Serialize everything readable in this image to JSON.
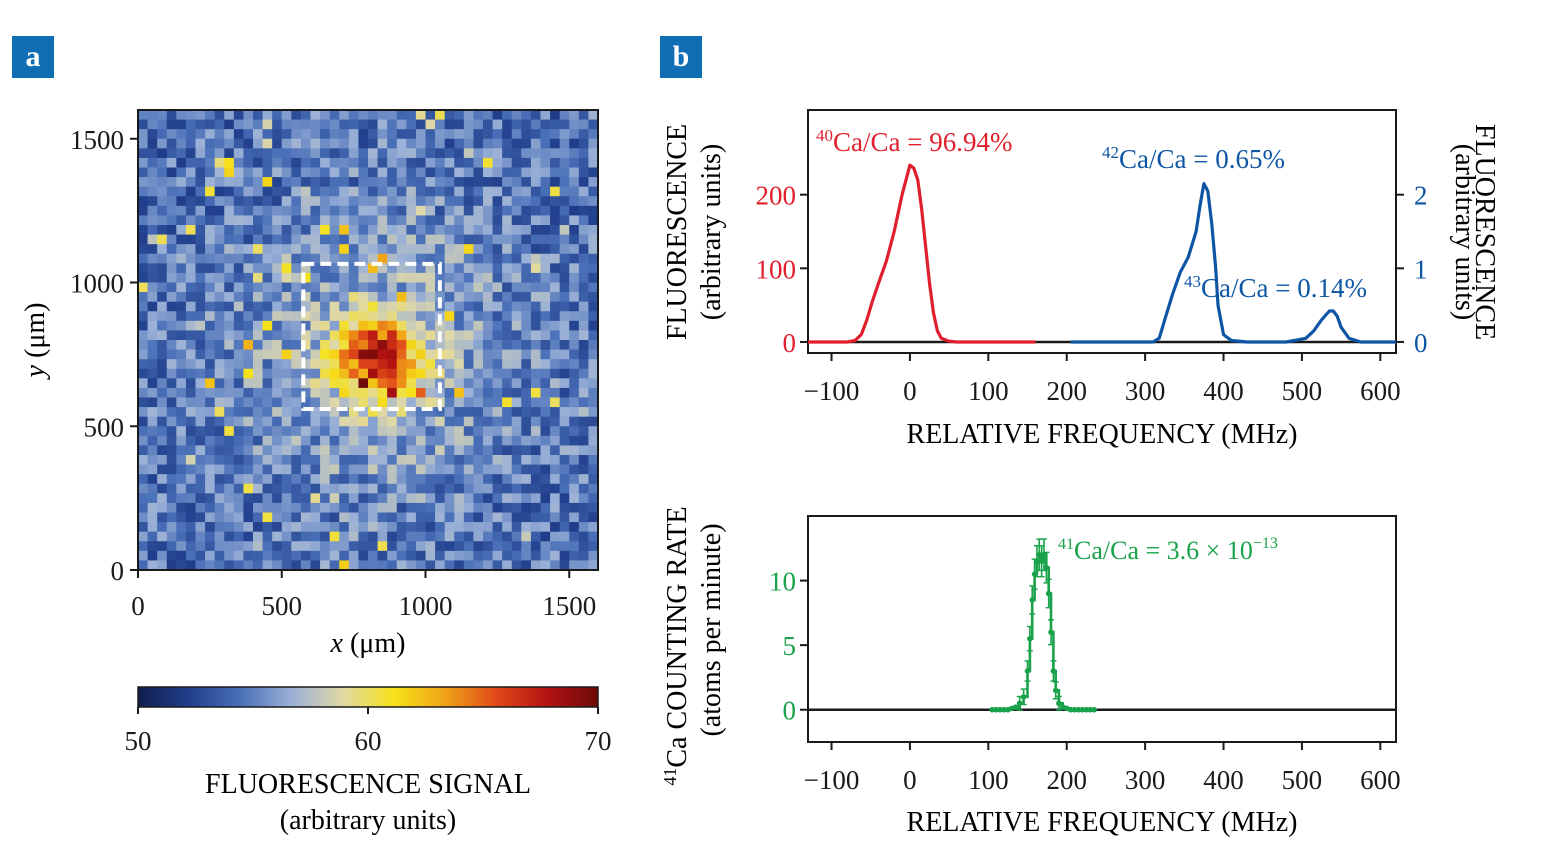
{
  "panels": {
    "a": "a",
    "b": "b"
  },
  "colors": {
    "red": "#e01f2d",
    "blue": "#0e56a5",
    "green": "#19a24a",
    "axis": "#1a1a1a",
    "badge": "#0f6eb4"
  },
  "chart_data": [
    {
      "id": "heatmap",
      "type": "heatmap",
      "xlabel_italic": "x",
      "xlabel_unit": " (μm)",
      "ylabel_italic": "y",
      "ylabel_unit": " (μm)",
      "xlim": [
        0,
        1600
      ],
      "ylim": [
        0,
        1600
      ],
      "xticks": [
        0,
        500,
        1000,
        1500
      ],
      "yticks": [
        0,
        500,
        1000,
        1500
      ],
      "grid_cells": 48,
      "hotspot_center_um": [
        830,
        740
      ],
      "roi_um": {
        "x0": 575,
        "x1": 1050,
        "y0": 560,
        "y1": 1065
      },
      "roi_style": "white dashed box"
    },
    {
      "id": "colorbar",
      "type": "colorbar",
      "range": [
        50,
        70
      ],
      "ticks": [
        50,
        60,
        70
      ],
      "label": "FLUORESCENCE SIGNAL",
      "sublabel": "(arbitrary units)",
      "colormap": [
        "#111d4d",
        "#213f8c",
        "#4a70b8",
        "#9ab0d6",
        "#e0d8a6",
        "#f6e21a",
        "#f0a417",
        "#e04a1a",
        "#b41212",
        "#6e0a0a"
      ]
    },
    {
      "id": "spectrum",
      "type": "line",
      "xlabel": "RELATIVE FREQUENCY (MHz)",
      "ylabel_left": "FLUORESCENCE",
      "ylabel_left_sub": "(arbitrary units)",
      "ylabel_right": "FLUORESCENCE",
      "ylabel_right_sub": "(arbitrary units)",
      "xlim": [
        -130,
        620
      ],
      "xticks": [
        -100,
        0,
        100,
        200,
        300,
        400,
        500,
        600
      ],
      "ylim_left": [
        -15,
        315
      ],
      "yticks_left": [
        0,
        100,
        200
      ],
      "ylim_right": [
        -0.15,
        3.15
      ],
      "yticks_right": [
        0,
        1,
        2
      ],
      "series": [
        {
          "name": "40Ca",
          "axis": "left",
          "color": "red",
          "x": [
            -130,
            -80,
            -70,
            -62,
            -55,
            -48,
            -40,
            -30,
            -20,
            -10,
            0,
            5,
            10,
            15,
            20,
            25,
            30,
            35,
            40,
            50,
            60,
            80,
            160
          ],
          "y": [
            0,
            0,
            2,
            10,
            30,
            55,
            80,
            110,
            150,
            200,
            240,
            236,
            220,
            180,
            130,
            80,
            40,
            15,
            5,
            1,
            0,
            0,
            0
          ]
        },
        {
          "name": "42Ca+43Ca",
          "axis": "right",
          "color": "blue",
          "x": [
            205,
            310,
            318,
            325,
            335,
            345,
            355,
            365,
            370,
            375,
            380,
            385,
            390,
            393,
            400,
            410,
            430,
            480,
            505,
            515,
            525,
            535,
            540,
            545,
            550,
            560,
            575,
            620
          ],
          "y": [
            0,
            0,
            0.05,
            0.3,
            0.65,
            0.95,
            1.15,
            1.5,
            1.85,
            2.15,
            2.05,
            1.6,
            1.0,
            0.5,
            0.1,
            0.02,
            0,
            0,
            0.05,
            0.15,
            0.3,
            0.42,
            0.42,
            0.35,
            0.2,
            0.05,
            0,
            0
          ]
        }
      ],
      "annotations": [
        {
          "sup": "40",
          "text": "Ca/Ca = 96.94%",
          "color": "red"
        },
        {
          "sup": "42",
          "text": "Ca/Ca = 0.65%",
          "color": "blue"
        },
        {
          "sup": "43",
          "text": "Ca/Ca = 0.14%",
          "color": "blue"
        }
      ]
    },
    {
      "id": "counting",
      "type": "line",
      "xlabel": "RELATIVE FREQUENCY (MHz)",
      "ylabel_sup": "41",
      "ylabel": "Ca COUNTING RATE",
      "ylabel_sub": "(atoms per minute)",
      "xlim": [
        -130,
        620
      ],
      "xticks": [
        -100,
        0,
        100,
        200,
        300,
        400,
        500,
        600
      ],
      "ylim": [
        -2.5,
        15
      ],
      "yticks": [
        0,
        5,
        10
      ],
      "color": "green",
      "x": [
        105,
        110,
        115,
        120,
        125,
        130,
        135,
        140,
        145,
        150,
        153,
        156,
        159,
        162,
        165,
        168,
        171,
        174,
        177,
        180,
        183,
        186,
        190,
        195,
        200,
        205,
        210,
        215,
        220,
        225,
        230,
        235
      ],
      "y": [
        0,
        0,
        0,
        0,
        0,
        0.1,
        0.2,
        0.5,
        1.0,
        3.0,
        5.5,
        8.5,
        10.5,
        11.5,
        12.0,
        11.5,
        12.0,
        11.0,
        9.0,
        6.0,
        3.0,
        1.5,
        0.5,
        0.2,
        0.1,
        0,
        0,
        0,
        0,
        0,
        0,
        0
      ],
      "annotation": {
        "sup1": "41",
        "text": "Ca/Ca = 3.6 × 10",
        "sup2": "−13"
      }
    }
  ]
}
